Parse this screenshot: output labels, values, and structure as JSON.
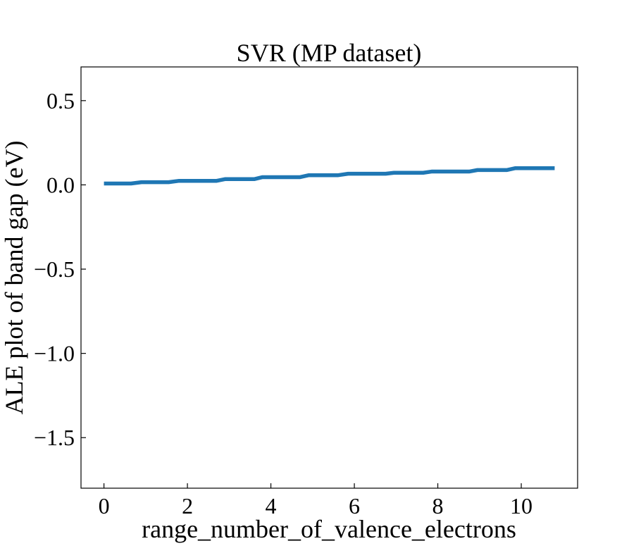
{
  "chart_data": {
    "type": "line",
    "title": "SVR (MP dataset)",
    "xlabel": "range_number_of_valence_electrons",
    "ylabel": "ALE plot of band gap (eV)",
    "xlim": [
      -0.55,
      11.35
    ],
    "ylim": [
      -1.8,
      0.7
    ],
    "x_ticks": [
      0,
      2,
      4,
      6,
      8,
      10
    ],
    "x_tick_labels": [
      "0",
      "2",
      "4",
      "6",
      "8",
      "10"
    ],
    "y_ticks": [
      0.5,
      0.0,
      -0.5,
      -1.0,
      -1.5
    ],
    "y_tick_labels": [
      "0.5",
      "0.0",
      "−0.5",
      "−1.0",
      "−1.5"
    ],
    "grid": false,
    "series": [
      {
        "color": "#1f77b4",
        "points": [
          [
            0.0,
            0.008
          ],
          [
            0.65,
            0.008
          ],
          [
            0.9,
            0.016
          ],
          [
            1.55,
            0.016
          ],
          [
            1.8,
            0.024
          ],
          [
            2.7,
            0.024
          ],
          [
            2.9,
            0.034
          ],
          [
            3.6,
            0.034
          ],
          [
            3.8,
            0.046
          ],
          [
            4.7,
            0.046
          ],
          [
            4.9,
            0.057
          ],
          [
            5.6,
            0.057
          ],
          [
            5.85,
            0.066
          ],
          [
            6.75,
            0.066
          ],
          [
            6.95,
            0.072
          ],
          [
            7.65,
            0.072
          ],
          [
            7.85,
            0.079
          ],
          [
            8.75,
            0.079
          ],
          [
            8.95,
            0.088
          ],
          [
            9.65,
            0.088
          ],
          [
            9.85,
            0.099
          ],
          [
            10.8,
            0.099
          ]
        ]
      }
    ]
  }
}
